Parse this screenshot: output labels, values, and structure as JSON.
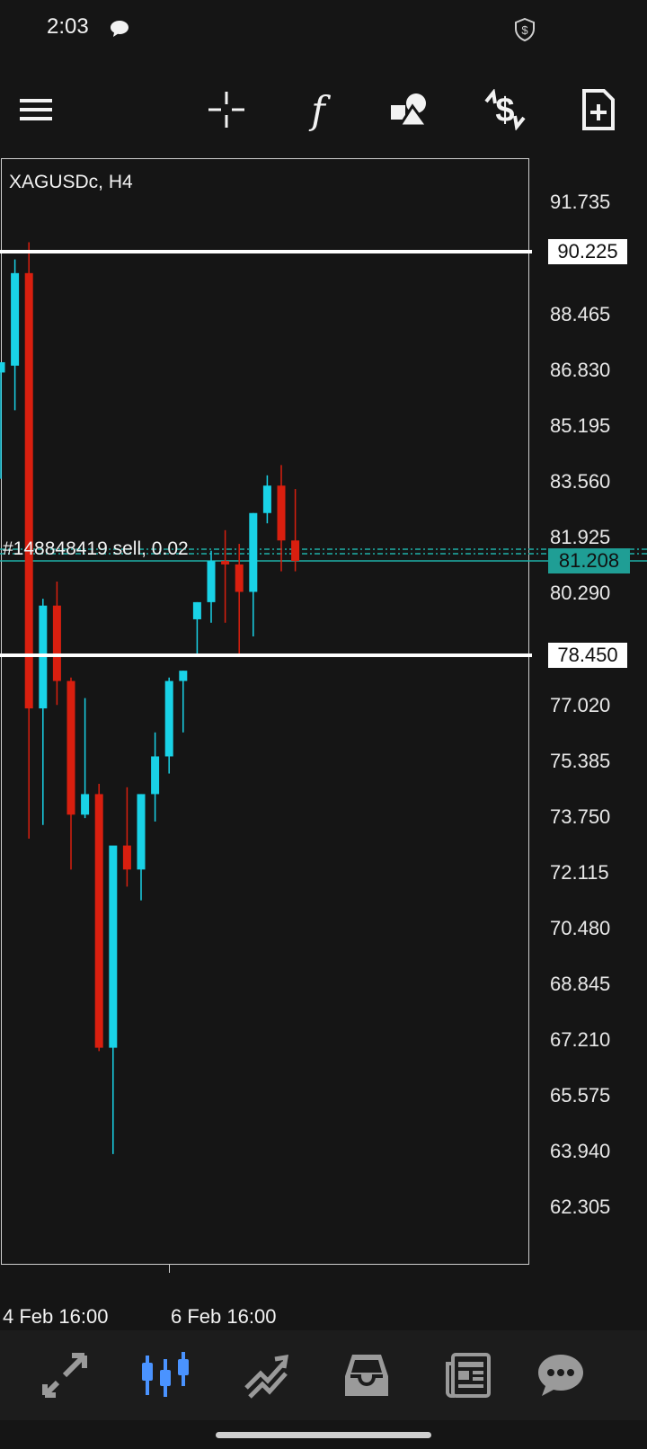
{
  "status_bar": {
    "time": "2:03",
    "icons": [
      "chat-bubble-icon",
      "shield-dollar-icon"
    ]
  },
  "toolbar": {
    "items": [
      "menu-icon",
      "crosshair-icon",
      "indicators-icon",
      "objects-icon",
      "trade-icon",
      "new-order-icon"
    ],
    "indicators_glyph": "f"
  },
  "chart": {
    "symbol": "XAGUSDc, H4",
    "order_label": "#148848419 sell, 0.02",
    "price_levels": [
      "91.735",
      "88.465",
      "86.830",
      "85.195",
      "83.560",
      "81.925",
      "80.290",
      "77.020",
      "75.385",
      "73.750",
      "72.115",
      "70.480",
      "68.845",
      "67.210",
      "65.575",
      "63.940",
      "62.305"
    ],
    "horizontal_lines": [
      {
        "price": "90.225"
      },
      {
        "price": "78.450"
      }
    ],
    "bid_price": "81.208",
    "time_labels": [
      "4 Feb 16:00",
      "6 Feb 16:00"
    ],
    "colors": {
      "bull": "#19d2e6",
      "bear": "#d91f0f",
      "order_line": "#1fb0a8",
      "background": "#151515"
    }
  },
  "chart_data": {
    "type": "candlestick",
    "title": "XAGUSDc, H4",
    "x_labels": [
      "4 Feb 16:00",
      "6 Feb 16:00"
    ],
    "y_range": [
      61.0,
      93.5
    ],
    "candles": [
      {
        "o": 86.7,
        "h": 87.0,
        "l": 83.6,
        "c": 87.0
      },
      {
        "o": 86.9,
        "h": 90.0,
        "l": 85.6,
        "c": 89.6
      },
      {
        "o": 89.6,
        "h": 90.5,
        "l": 73.1,
        "c": 76.9
      },
      {
        "o": 76.9,
        "h": 80.1,
        "l": 73.5,
        "c": 79.9
      },
      {
        "o": 79.9,
        "h": 80.6,
        "l": 77.0,
        "c": 77.7
      },
      {
        "o": 77.7,
        "h": 77.8,
        "l": 72.2,
        "c": 73.8
      },
      {
        "o": 73.8,
        "h": 77.2,
        "l": 73.7,
        "c": 74.4
      },
      {
        "o": 74.4,
        "h": 74.7,
        "l": 66.9,
        "c": 67.0
      },
      {
        "o": 67.0,
        "h": 72.8,
        "l": 63.9,
        "c": 72.9
      },
      {
        "o": 72.9,
        "h": 74.6,
        "l": 71.7,
        "c": 72.2
      },
      {
        "o": 72.2,
        "h": 74.4,
        "l": 71.3,
        "c": 74.4
      },
      {
        "o": 74.4,
        "h": 76.2,
        "l": 73.6,
        "c": 75.5
      },
      {
        "o": 75.5,
        "h": 77.8,
        "l": 75.0,
        "c": 77.7
      },
      {
        "o": 77.7,
        "h": 78.0,
        "l": 76.2,
        "c": 78.0
      },
      {
        "o": 79.5,
        "h": 80.0,
        "l": 78.4,
        "c": 80.0
      },
      {
        "o": 80.0,
        "h": 81.5,
        "l": 79.4,
        "c": 81.2
      },
      {
        "o": 81.2,
        "h": 82.1,
        "l": 79.4,
        "c": 81.1
      },
      {
        "o": 81.1,
        "h": 81.7,
        "l": 78.5,
        "c": 80.3
      },
      {
        "o": 80.3,
        "h": 82.6,
        "l": 79.0,
        "c": 82.6
      },
      {
        "o": 82.6,
        "h": 83.7,
        "l": 82.3,
        "c": 83.4
      },
      {
        "o": 83.4,
        "h": 84.0,
        "l": 80.9,
        "c": 81.8
      },
      {
        "o": 81.8,
        "h": 83.3,
        "l": 80.9,
        "c": 81.2
      }
    ],
    "horizontal_lines": [
      90.225,
      78.45
    ],
    "bid": 81.208,
    "order": {
      "id": "#148848419",
      "side": "sell",
      "volume": 0.02,
      "price": 81.5
    }
  },
  "bottom_nav": {
    "items": [
      "quotes-icon",
      "chart-icon",
      "trade-icon",
      "history-icon",
      "news-icon",
      "messages-icon"
    ],
    "active": "chart-icon"
  }
}
